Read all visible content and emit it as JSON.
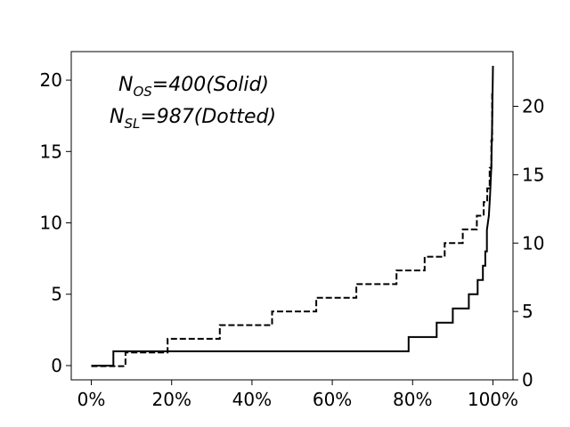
{
  "chart_data": {
    "type": "line",
    "x_axis": {
      "range": [
        -0.05,
        1.05
      ],
      "ticks": [
        0,
        0.2,
        0.4,
        0.6,
        0.8,
        1.0
      ],
      "tick_labels": [
        "0%",
        "20%",
        "40%",
        "60%",
        "80%",
        "100%"
      ]
    },
    "y_axis_left": {
      "range": [
        -1,
        22
      ],
      "ticks": [
        0,
        5,
        10,
        15,
        20
      ],
      "tick_labels": [
        "0",
        "5",
        "10",
        "15",
        "20"
      ]
    },
    "y_axis_right": {
      "range": [
        0,
        24
      ],
      "ticks": [
        0,
        5,
        10,
        15,
        20
      ],
      "tick_labels": [
        "0",
        "5",
        "10",
        "15",
        "20"
      ]
    },
    "annotations": {
      "solid": {
        "base": "N",
        "sub": "OS",
        "rest": "=400(Solid)"
      },
      "dotted": {
        "base": "N",
        "sub": "SL",
        "rest": "=987(Dotted)"
      }
    },
    "grid": false,
    "series": [
      {
        "style": "solid",
        "axis": "left",
        "x": [
          0,
          0.055,
          0.055,
          0.79,
          0.79,
          0.86,
          0.86,
          0.9,
          0.9,
          0.94,
          0.94,
          0.962,
          0.962,
          0.975,
          0.975,
          0.981,
          0.981,
          0.985,
          0.985,
          0.99,
          0.993,
          0.996,
          0.998,
          1.0
        ],
        "y": [
          0,
          0,
          1,
          1,
          2,
          2,
          3,
          3,
          4,
          4,
          5,
          5,
          6,
          6,
          7,
          7,
          8,
          8,
          9.5,
          10.5,
          12,
          14,
          17,
          21
        ]
      },
      {
        "style": "dashed",
        "axis": "right",
        "x": [
          0,
          0.085,
          0.085,
          0.19,
          0.19,
          0.32,
          0.32,
          0.45,
          0.45,
          0.56,
          0.56,
          0.66,
          0.66,
          0.76,
          0.76,
          0.83,
          0.83,
          0.88,
          0.88,
          0.925,
          0.925,
          0.96,
          0.96,
          0.977,
          0.977,
          0.986,
          0.986,
          0.992,
          0.992,
          0.996,
          0.996,
          0.998,
          0.998,
          1.0
        ],
        "y": [
          1,
          1,
          2,
          2,
          3,
          3,
          4,
          4,
          5,
          5,
          6,
          6,
          7,
          7,
          8,
          8,
          9,
          9,
          10,
          10,
          11,
          11,
          12,
          12,
          13,
          13,
          14,
          14,
          15.5,
          15.5,
          17.5,
          17.5,
          21,
          21
        ]
      }
    ]
  }
}
